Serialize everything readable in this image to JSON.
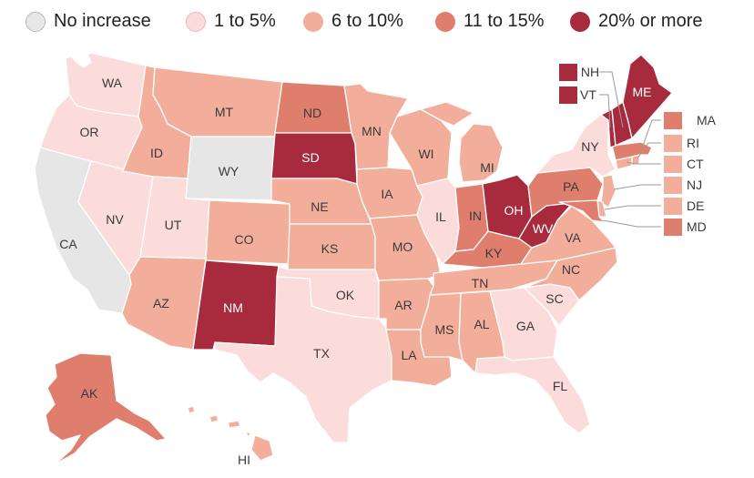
{
  "legend": [
    {
      "label": "No increase",
      "color": "#e6e6e6"
    },
    {
      "label": "1 to 5%",
      "color": "#fbdcdb"
    },
    {
      "label": "6 to 10%",
      "color": "#f3ae9b"
    },
    {
      "label": "11 to 15%",
      "color": "#e07e6d"
    },
    {
      "label": "20% or more",
      "color": "#a72b3d"
    }
  ],
  "states": {
    "WA": "1 to 5%",
    "OR": "1 to 5%",
    "CA": "No increase",
    "NV": "1 to 5%",
    "ID": "6 to 10%",
    "MT": "6 to 10%",
    "WY": "No increase",
    "UT": "1 to 5%",
    "CO": "6 to 10%",
    "AZ": "6 to 10%",
    "NM": "20% or more",
    "ND": "11 to 15%",
    "SD": "20% or more",
    "NE": "6 to 10%",
    "KS": "6 to 10%",
    "OK": "1 to 5%",
    "TX": "1 to 5%",
    "MN": "6 to 10%",
    "IA": "6 to 10%",
    "MO": "6 to 10%",
    "AR": "6 to 10%",
    "LA": "6 to 10%",
    "WI": "6 to 10%",
    "IL": "1 to 5%",
    "MI": "6 to 10%",
    "IN": "11 to 15%",
    "OH": "20% or more",
    "KY": "11 to 15%",
    "TN": "6 to 10%",
    "MS": "6 to 10%",
    "AL": "6 to 10%",
    "GA": "1 to 5%",
    "FL": "1 to 5%",
    "SC": "1 to 5%",
    "NC": "6 to 10%",
    "VA": "6 to 10%",
    "WV": "20% or more",
    "PA": "11 to 15%",
    "NY": "1 to 5%",
    "VT": "20% or more",
    "NH": "20% or more",
    "ME": "20% or more",
    "MA": "11 to 15%",
    "RI": "6 to 10%",
    "CT": "6 to 10%",
    "NJ": "6 to 10%",
    "DE": "6 to 10%",
    "MD": "11 to 15%",
    "AK": "11 to 15%",
    "HI": "6 to 10%"
  }
}
